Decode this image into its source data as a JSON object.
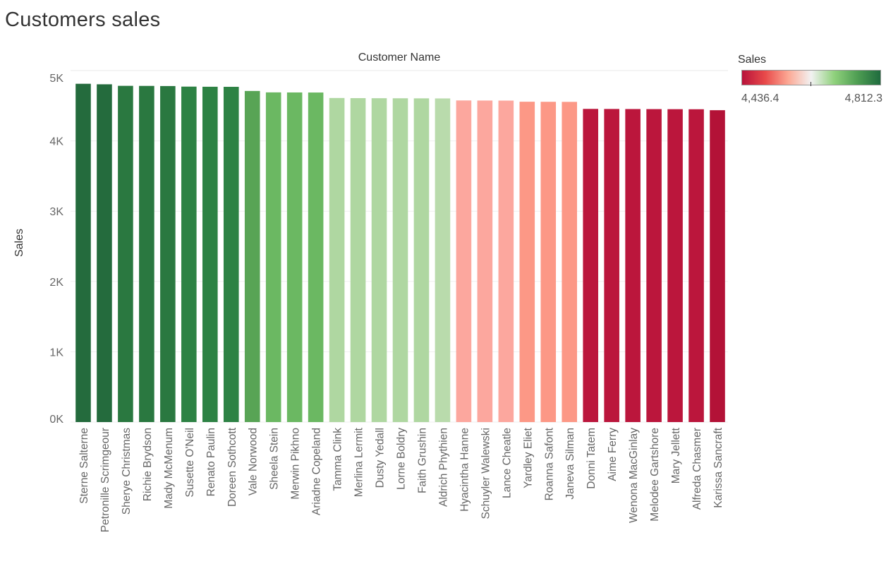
{
  "page": {
    "title": "Customers sales"
  },
  "legend": {
    "title": "Sales",
    "min_label": "4,436.4",
    "max_label": "4,812.3",
    "gradient_colors": [
      "#b8123a",
      "#e84a4a",
      "#fca894",
      "#f2f2f2",
      "#8fd17c",
      "#4f9e53",
      "#1f6b3e"
    ]
  },
  "chart_data": {
    "type": "bar",
    "title": "Customers sales",
    "xlabel": "Customer Name",
    "ylabel": "Sales",
    "ylim": [
      0,
      5000
    ],
    "yticks": [
      0,
      1000,
      2000,
      3000,
      4000,
      5000
    ],
    "ytick_labels": [
      "0K",
      "1K",
      "2K",
      "3K",
      "4K",
      "5K"
    ],
    "color_scale": {
      "min": 4436.4,
      "max": 4812.3
    },
    "grid": "horizontal",
    "categories": [
      "Sterne Salterne",
      "Petronille Scrimgeour",
      "Sherye Christmas",
      "Richie Brydson",
      "Mady McMenum",
      "Susette O'Neil",
      "Renato Paulin",
      "Doreen Sothcott",
      "Vale Norwood",
      "Sheela Stein",
      "Merwin Pikhno",
      "Ariadne Copeland",
      "Tamma Clink",
      "Merlina Lermit",
      "Dusty Yedall",
      "Lorne Boldry",
      "Faith Grushin",
      "Aldrich Phythien",
      "Hyacintha Hanne",
      "Schuyler Walewski",
      "Lance Cheatle",
      "Yardley Eliet",
      "Roanna Safont",
      "Janeva Silman",
      "Donni Tatem",
      "Aime Ferry",
      "Wenona MacGinlay",
      "Melodee Gartshore",
      "Mary Jellett",
      "Alfreda Chasmer",
      "Karissa Sancraft"
    ],
    "values": [
      4812.3,
      4805,
      4783,
      4782,
      4780,
      4772,
      4770,
      4769,
      4710,
      4690,
      4689,
      4688,
      4610,
      4608,
      4607,
      4606,
      4605,
      4604,
      4575,
      4574,
      4573,
      4557,
      4556,
      4555,
      4455,
      4454,
      4453,
      4452,
      4451,
      4450,
      4436.4
    ],
    "colors": [
      "#246b3d",
      "#246b3d",
      "#2a7840",
      "#2a7840",
      "#2a7840",
      "#2d8244",
      "#2d8244",
      "#2d8244",
      "#58a455",
      "#6bb862",
      "#6bb862",
      "#6bb862",
      "#afd7a1",
      "#afd7a1",
      "#afd7a1",
      "#afd7a1",
      "#afd7a1",
      "#b9dbac",
      "#fca79e",
      "#fca79e",
      "#fca79e",
      "#fc9886",
      "#fc9886",
      "#fc9886",
      "#bb163c",
      "#bb163c",
      "#bb163c",
      "#bb163c",
      "#bb163c",
      "#bb163c",
      "#b31237"
    ]
  }
}
